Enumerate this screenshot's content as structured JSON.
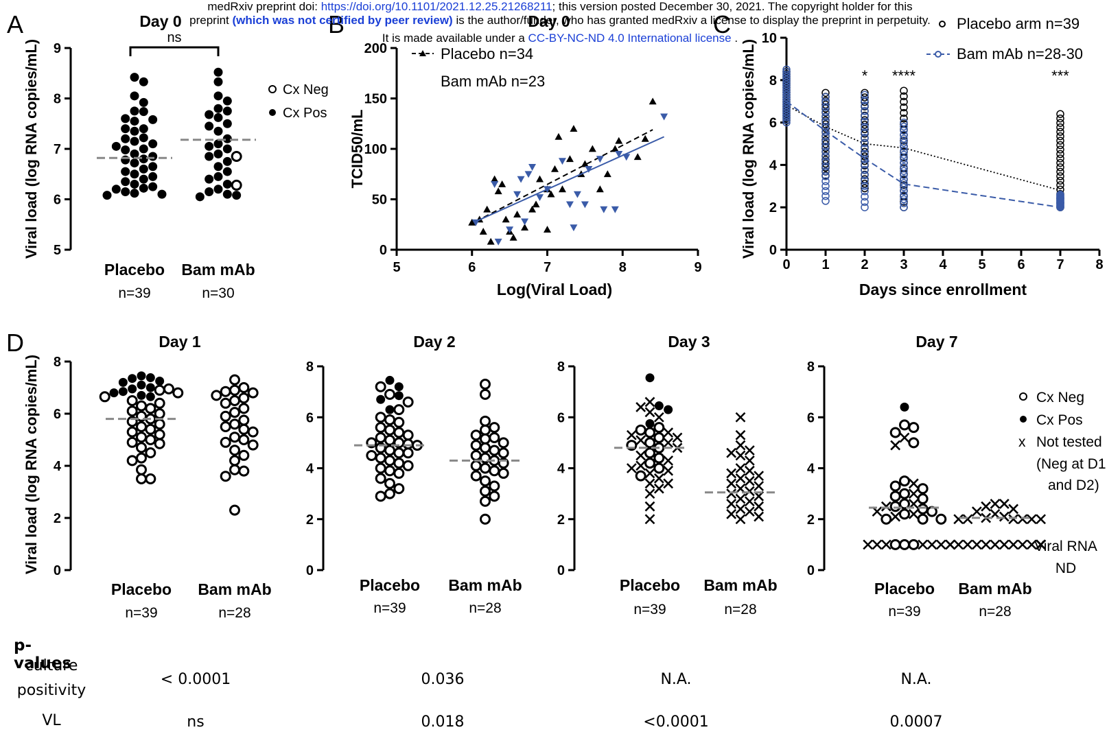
{
  "header": {
    "line1_pre": "medRxiv preprint doi: ",
    "line1_link": "https://doi.org/10.1101/2021.12.25.21268211",
    "line1_post": "; this version posted December 30, 2021. The copyright holder for this",
    "line2_pre": "preprint ",
    "line2_bold": "(which was not certified by peer review)",
    "line2_post": " is the author/funder, who has granted medRxiv a license to display the preprint in perpetuity.",
    "line3_pre": "It is made available under a ",
    "line3_link": "CC-BY-NC-ND 4.0 International license",
    "line3_post": " ."
  },
  "colors": {
    "placebo": "#000000",
    "bam": "#3a5ba8",
    "median": "#888888"
  },
  "chart_data": [
    {
      "id": "A",
      "type": "scatter",
      "panel_label": "A",
      "title": "Day 0",
      "ylabel": "Viral load (log RNA copies/mL)",
      "ylim": [
        5,
        9
      ],
      "yticks": [
        5,
        6,
        7,
        8,
        9
      ],
      "categories": [
        "Placebo",
        "Bam mAb"
      ],
      "category_n": [
        "n=39",
        "n=30"
      ],
      "significance": "ns",
      "legend": [
        "Cx Neg",
        "Cx Pos"
      ],
      "series": [
        {
          "name": "Placebo",
          "median": 6.82,
          "culture_positive": [
            8.42,
            8.33,
            8.05,
            7.92,
            7.74,
            7.75,
            7.6,
            7.55,
            7.58,
            7.4,
            7.4,
            7.35,
            7.2,
            7.22,
            7.15,
            7.1,
            7.0,
            7.05,
            6.98,
            6.85,
            6.8,
            6.78,
            6.72,
            6.65,
            6.6,
            6.55,
            6.5,
            6.45,
            6.35,
            6.3,
            6.25,
            6.2,
            6.15,
            6.1,
            6.08,
            6.12,
            6.22,
            6.4,
            6.9
          ],
          "culture_negative": []
        },
        {
          "name": "Bam mAb",
          "median": 7.18,
          "culture_positive": [
            8.52,
            8.33,
            8.05,
            7.95,
            7.8,
            7.75,
            7.68,
            7.62,
            7.5,
            7.45,
            7.35,
            7.2,
            7.1,
            7.05,
            7.0,
            6.85,
            6.75,
            6.65,
            6.55,
            6.45,
            6.4,
            6.3,
            6.15,
            6.1,
            6.05,
            6.08,
            6.2,
            6.9
          ],
          "culture_negative": [
            6.85,
            6.28
          ]
        }
      ]
    },
    {
      "id": "B",
      "type": "scatter",
      "panel_label": "B",
      "title": "Day 0",
      "xlabel": "Log(Viral Load)",
      "ylabel": "TCID50/mL",
      "xlim": [
        5,
        9
      ],
      "ylim": [
        0,
        200
      ],
      "xticks": [
        5,
        6,
        7,
        8,
        9
      ],
      "yticks": [
        0,
        50,
        100,
        150,
        200
      ],
      "series": [
        {
          "name": "Placebo n=34",
          "marker": "triangle-up",
          "fit": [
            [
              6.05,
              28
            ],
            [
              8.4,
              119
            ]
          ],
          "points": [
            [
              6.1,
              30
            ],
            [
              6.15,
              18
            ],
            [
              6.2,
              40
            ],
            [
              6.25,
              8
            ],
            [
              6.3,
              70
            ],
            [
              6.35,
              58
            ],
            [
              6.4,
              65
            ],
            [
              6.45,
              30
            ],
            [
              6.5,
              18
            ],
            [
              6.55,
              12
            ],
            [
              6.6,
              35
            ],
            [
              6.7,
              22
            ],
            [
              6.8,
              40
            ],
            [
              6.85,
              45
            ],
            [
              6.9,
              70
            ],
            [
              7.0,
              20
            ],
            [
              7.0,
              60
            ],
            [
              7.05,
              55
            ],
            [
              7.1,
              80
            ],
            [
              7.15,
              112
            ],
            [
              7.2,
              60
            ],
            [
              7.3,
              90
            ],
            [
              7.35,
              120
            ],
            [
              7.45,
              75
            ],
            [
              7.5,
              85
            ],
            [
              7.6,
              100
            ],
            [
              7.7,
              60
            ],
            [
              7.8,
              75
            ],
            [
              7.9,
              100
            ],
            [
              7.95,
              108
            ],
            [
              8.2,
              92
            ],
            [
              8.3,
              110
            ],
            [
              8.4,
              147
            ],
            [
              6.0,
              27
            ]
          ]
        },
        {
          "name": "Bam mAb n=23",
          "marker": "triangle-down",
          "fit": [
            [
              6.05,
              28
            ],
            [
              8.55,
              112
            ]
          ],
          "points": [
            [
              6.05,
              27
            ],
            [
              6.3,
              65
            ],
            [
              6.35,
              8
            ],
            [
              6.5,
              20
            ],
            [
              6.6,
              55
            ],
            [
              6.65,
              70
            ],
            [
              6.7,
              28
            ],
            [
              6.75,
              75
            ],
            [
              6.8,
              82
            ],
            [
              6.9,
              52
            ],
            [
              7.0,
              60
            ],
            [
              7.2,
              88
            ],
            [
              7.3,
              45
            ],
            [
              7.35,
              22
            ],
            [
              7.4,
              55
            ],
            [
              7.5,
              45
            ],
            [
              7.55,
              80
            ],
            [
              7.7,
              90
            ],
            [
              7.75,
              40
            ],
            [
              7.9,
              40
            ],
            [
              7.95,
              95
            ],
            [
              8.05,
              92
            ],
            [
              8.55,
              132
            ]
          ]
        }
      ],
      "legend": [
        "Placebo n=34",
        "Bam mAb n=23"
      ]
    },
    {
      "id": "C",
      "type": "line",
      "panel_label": "C",
      "xlabel": "Days since enrollment",
      "ylabel": "Viral load (log RNA copies/mL)",
      "xlim": [
        0,
        8
      ],
      "ylim": [
        0,
        10
      ],
      "xticks": [
        0,
        1,
        2,
        3,
        4,
        5,
        6,
        7,
        8
      ],
      "yticks": [
        0,
        2,
        4,
        6,
        8,
        10
      ],
      "legend": [
        "Placebo arm n=39",
        "Bam mAb n=28-30"
      ],
      "annotations": [
        {
          "x": 2,
          "text": "*"
        },
        {
          "x": 3,
          "text": "****"
        },
        {
          "x": 7,
          "text": "***"
        }
      ],
      "series": [
        {
          "name": "Placebo arm n=39",
          "style": "dotted",
          "x": [
            0,
            1,
            2,
            3,
            7
          ],
          "y": [
            6.82,
            5.8,
            5.0,
            4.8,
            2.8
          ],
          "scatter": {
            "0": [
              6.1,
              8.4
            ],
            "1": [
              3.5,
              7.4
            ],
            "2": [
              2.9,
              7.4
            ],
            "3": [
              2.0,
              7.5
            ],
            "7": [
              2.0,
              6.4
            ]
          }
        },
        {
          "name": "Bam mAb n=28-30",
          "style": "dashed",
          "x": [
            0,
            1,
            2,
            3,
            7
          ],
          "y": [
            7.0,
            5.6,
            4.3,
            3.1,
            2.0
          ],
          "scatter": {
            "0": [
              6.0,
              8.5
            ],
            "1": [
              2.3,
              7.2
            ],
            "2": [
              2.0,
              7.3
            ],
            "3": [
              2.0,
              6.0
            ],
            "7": [
              2.0,
              2.6
            ]
          }
        }
      ]
    },
    {
      "id": "D1",
      "type": "scatter",
      "panel_label": "D",
      "title": "Day 1",
      "ylabel": "Viral load (log RNA copies/mL)",
      "ylim": [
        0,
        8
      ],
      "yticks": [
        0,
        2,
        4,
        6,
        8
      ],
      "categories": [
        "Placebo",
        "Bam mAb"
      ],
      "category_n": [
        "n=39",
        "n=28"
      ],
      "series": [
        {
          "name": "Placebo",
          "median": 5.8,
          "culture_positive": [
            7.45,
            7.38,
            7.35,
            7.25,
            7.2,
            7.1,
            7.0,
            6.95,
            6.85,
            6.8,
            6.7,
            6.65
          ],
          "culture_negative": [
            6.95,
            6.9,
            6.8,
            6.65,
            6.5,
            6.4,
            6.3,
            6.2,
            6.1,
            6.0,
            5.9,
            5.8,
            5.7,
            5.6,
            5.5,
            5.4,
            5.3,
            5.2,
            5.1,
            5.0,
            4.9,
            4.85,
            4.7,
            4.5,
            4.3,
            4.2,
            3.85,
            3.5,
            3.5
          ]
        },
        {
          "name": "Bam mAb",
          "median": null,
          "culture_positive": [],
          "culture_negative": [
            7.3,
            7.0,
            6.9,
            6.85,
            6.8,
            6.6,
            6.5,
            6.4,
            6.2,
            6.05,
            5.9,
            5.75,
            5.6,
            5.5,
            5.4,
            5.3,
            5.1,
            5.0,
            4.9,
            4.8,
            4.6,
            4.4,
            4.2,
            3.85,
            3.8,
            3.6,
            2.3,
            6.7
          ]
        }
      ]
    },
    {
      "id": "D2",
      "type": "scatter",
      "title": "Day 2",
      "ylim": [
        0,
        8
      ],
      "yticks": [
        0,
        2,
        4,
        6,
        8
      ],
      "categories": [
        "Placebo",
        "Bam mAb"
      ],
      "category_n": [
        "n=39",
        "n=28"
      ],
      "series": [
        {
          "name": "Placebo",
          "median": 4.9,
          "culture_positive": [
            7.45,
            7.2,
            6.85,
            6.7,
            6.3
          ],
          "culture_negative": [
            7.2,
            6.9,
            6.6,
            6.3,
            6.0,
            5.9,
            5.8,
            5.6,
            5.4,
            5.3,
            5.2,
            5.1,
            5.0,
            4.95,
            4.9,
            4.8,
            4.7,
            4.6,
            4.5,
            4.4,
            4.3,
            4.2,
            4.0,
            3.9,
            3.8,
            3.6,
            3.4,
            3.2,
            3.0,
            2.9,
            4.1,
            4.6,
            5.0,
            5.5
          ]
        },
        {
          "name": "Bam mAb",
          "median": 4.3,
          "culture_positive": [],
          "culture_negative": [
            7.3,
            6.9,
            5.85,
            5.6,
            5.5,
            5.2,
            5.0,
            4.9,
            4.8,
            4.6,
            4.5,
            4.4,
            4.3,
            4.2,
            4.0,
            3.9,
            3.7,
            3.5,
            3.3,
            3.1,
            2.9,
            2.7,
            2.0,
            5.3,
            4.7,
            3.8,
            4.1,
            5.15
          ]
        }
      ]
    },
    {
      "id": "D3",
      "type": "scatter",
      "title": "Day 3",
      "ylim": [
        0,
        8
      ],
      "yticks": [
        0,
        2,
        4,
        6,
        8
      ],
      "categories": [
        "Placebo",
        "Bam mAb"
      ],
      "category_n": [
        "n=39",
        "n=28"
      ],
      "series": [
        {
          "name": "Placebo",
          "median": 4.8,
          "culture_positive": [
            7.55,
            6.45,
            6.3,
            5.75
          ],
          "culture_negative": [
            5.6,
            5.5,
            5.4,
            5.2,
            5.0,
            4.9,
            4.8,
            4.6,
            4.4,
            4.2,
            4.0,
            3.7
          ],
          "not_tested": [
            6.6,
            6.4,
            6.2,
            6.0,
            5.4,
            5.3,
            5.2,
            5.0,
            4.8,
            4.5,
            4.3,
            4.1,
            4.0,
            3.8,
            3.6,
            3.4,
            3.2,
            3.0,
            2.5,
            2.0,
            3.4,
            5.1,
            3.9
          ]
        },
        {
          "name": "Bam mAb",
          "median": 3.05,
          "culture_positive": [],
          "culture_negative": [],
          "not_tested": [
            6.0,
            5.3,
            4.9,
            4.7,
            4.5,
            4.3,
            4.0,
            3.9,
            3.7,
            3.6,
            3.5,
            3.4,
            3.3,
            3.2,
            3.1,
            3.0,
            2.9,
            2.8,
            2.7,
            2.6,
            2.5,
            2.4,
            2.3,
            2.2,
            2.1,
            2.0,
            3.8,
            4.6
          ]
        }
      ]
    },
    {
      "id": "D7",
      "type": "scatter",
      "title": "Day 7",
      "ylim": [
        0,
        8
      ],
      "yticks": [
        0,
        2,
        4,
        6,
        8
      ],
      "categories": [
        "Placebo",
        "Bam mAb"
      ],
      "category_n": [
        "n=39",
        "n=28"
      ],
      "legend": [
        "Cx Neg",
        "Cx Pos",
        "Not tested (Neg at D1 and D2)"
      ],
      "nd_label": "Viral RNA ND",
      "series": [
        {
          "name": "Placebo",
          "median": 2.45,
          "culture_positive": [
            6.4
          ],
          "culture_negative": [
            5.7,
            5.6,
            5.4,
            5.0,
            3.5,
            3.3,
            3.2,
            3.0,
            2.9,
            2.8,
            2.6,
            2.5,
            2.4,
            2.3,
            2.2,
            2.0,
            2.0,
            2.0,
            1.0,
            1.0,
            1.0
          ],
          "not_tested": [
            5.2,
            4.9,
            3.4,
            3.0,
            2.6,
            2.5,
            2.3,
            2.2,
            2.1,
            1.0,
            1.0,
            1.0,
            1.0,
            1.0,
            1.0,
            1.0,
            1.0
          ]
        },
        {
          "name": "Bam mAb",
          "median": 2.05,
          "culture_positive": [],
          "culture_negative": [],
          "not_tested": [
            2.6,
            2.6,
            2.5,
            2.4,
            2.3,
            2.2,
            2.1,
            2.05,
            2.0,
            2.0,
            2.0,
            2.0,
            2.0,
            2.0,
            1.0,
            1.0,
            1.0,
            1.0,
            1.0,
            1.0,
            1.0,
            1.0,
            1.0,
            1.0,
            1.0,
            1.0,
            1.0,
            1.0
          ]
        }
      ]
    }
  ],
  "pvalues": {
    "heading": "p-values",
    "row1_label_line1": "culture",
    "row1_label_line2": "positivity",
    "row2_label": "VL",
    "culture": [
      "< 0.0001",
      "0.036",
      "N.A.",
      "N.A."
    ],
    "vl": [
      "ns",
      "0.018",
      "<0.0001",
      "0.0007"
    ]
  }
}
